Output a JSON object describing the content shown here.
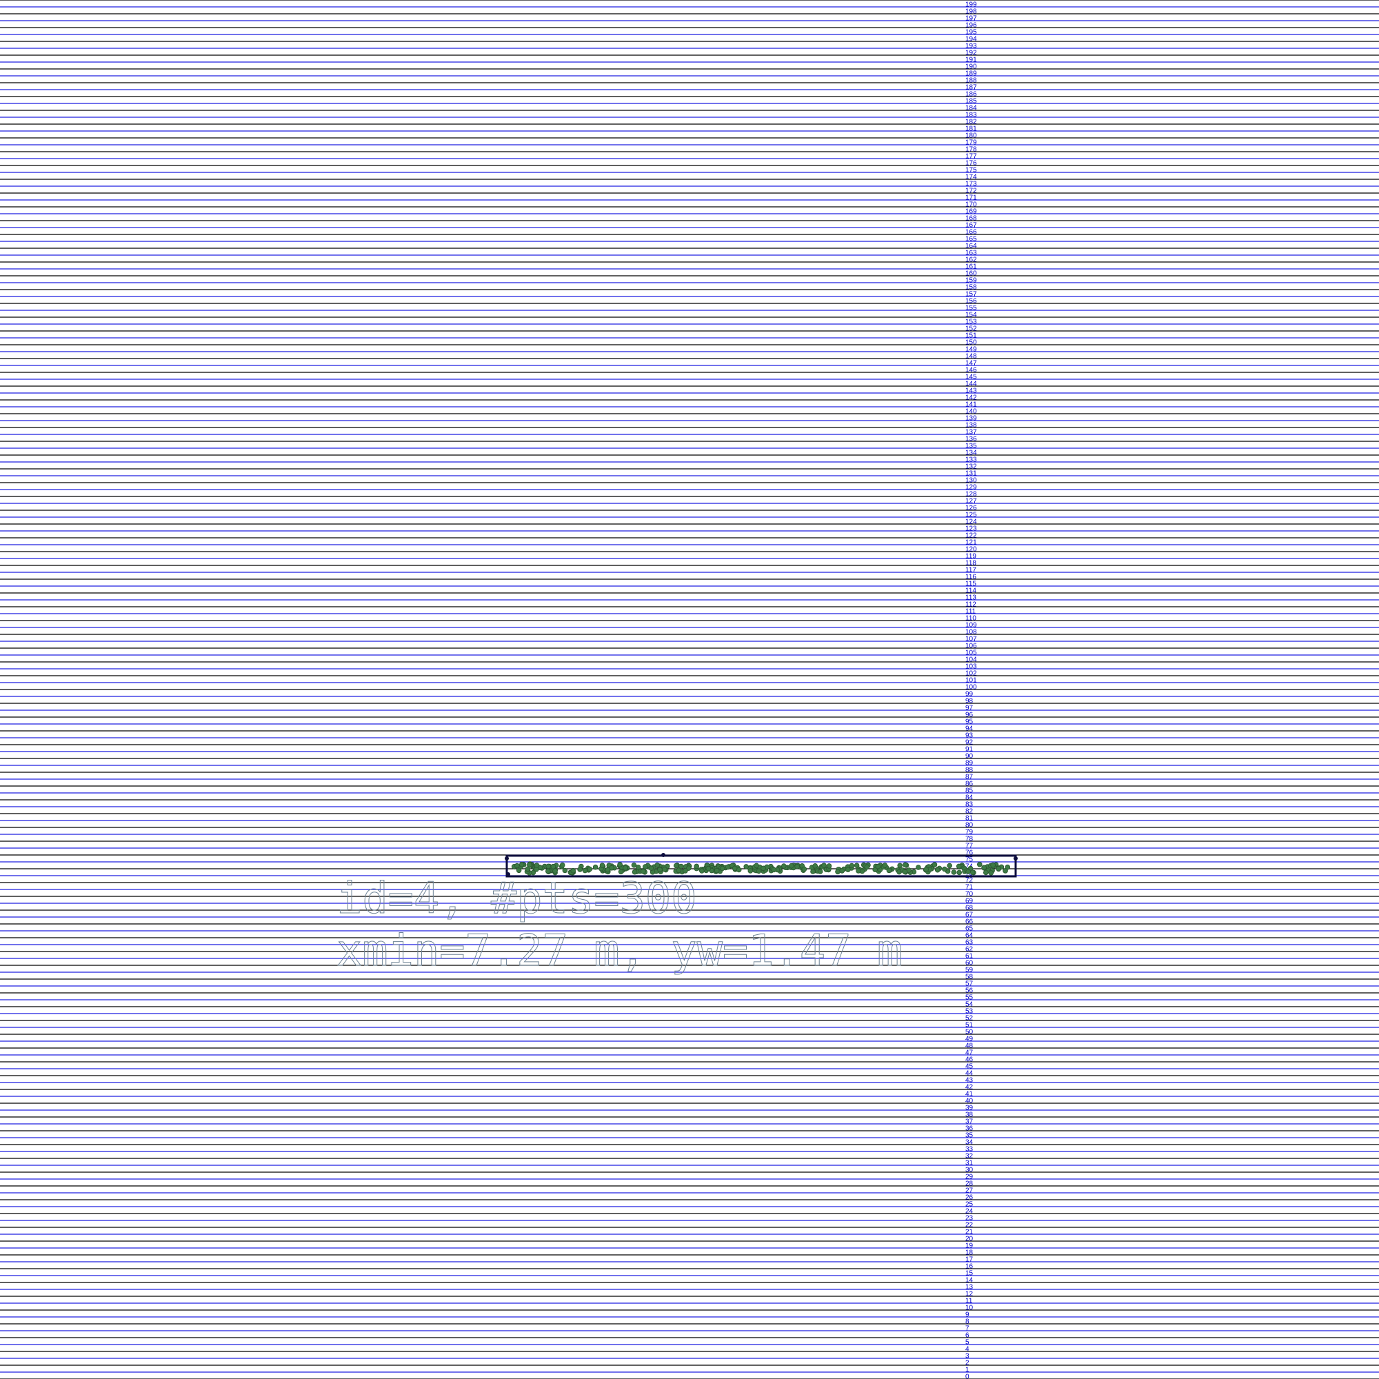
{
  "grid": {
    "row_count": 200,
    "line_colors": [
      "#000000",
      "#1f1fe0"
    ],
    "label_color": "#0000cc"
  },
  "cluster": {
    "id": 4,
    "num_points": 300,
    "label_line1": "id=4, #pts=300",
    "label_line2": "xmin=7.27 m, yw=1.47 m",
    "box_color": "#0d0d3d",
    "point_color": "#3d7a45",
    "point_edge_color": "#2a5530",
    "text_color": "#6f8497"
  }
}
